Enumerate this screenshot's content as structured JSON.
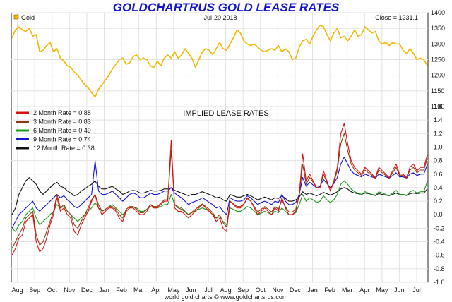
{
  "page": {
    "title": "GOLDCHARTRUS GOLD LEASE RATES",
    "footer": "world gold charts © www.goldchartsrus.com"
  },
  "chart_data": [
    {
      "type": "line",
      "legend": "Gold",
      "date_label": "Jul-20  2018",
      "close_label": "Close = 1231.1",
      "color": "#f5b800",
      "ylim": [
        1100,
        1400
      ],
      "yticks": [
        1100,
        1150,
        1200,
        1250,
        1300,
        1350,
        1400
      ],
      "grid": true,
      "series": [
        {
          "name": "Gold",
          "values": [
            1320,
            1345,
            1355,
            1345,
            1340,
            1350,
            1325,
            1330,
            1275,
            1280,
            1295,
            1305,
            1275,
            1285,
            1255,
            1245,
            1230,
            1225,
            1210,
            1200,
            1185,
            1170,
            1160,
            1145,
            1130,
            1155,
            1170,
            1185,
            1200,
            1220,
            1235,
            1250,
            1255,
            1235,
            1240,
            1260,
            1265,
            1250,
            1255,
            1250,
            1230,
            1225,
            1245,
            1230,
            1255,
            1265,
            1255,
            1275,
            1255,
            1265,
            1285,
            1270,
            1255,
            1225,
            1250,
            1275,
            1285,
            1280,
            1265,
            1285,
            1305,
            1285,
            1280,
            1300,
            1320,
            1345,
            1335,
            1310,
            1300,
            1295,
            1300,
            1290,
            1280,
            1275,
            1280,
            1285,
            1280,
            1295,
            1275,
            1285,
            1275,
            1250,
            1255,
            1290,
            1310,
            1315,
            1300,
            1325,
            1345,
            1360,
            1355,
            1330,
            1310,
            1335,
            1350,
            1320,
            1325,
            1310,
            1325,
            1345,
            1325,
            1330,
            1355,
            1345,
            1335,
            1340,
            1310,
            1300,
            1305,
            1295,
            1305,
            1300,
            1300,
            1280,
            1270,
            1285,
            1270,
            1250,
            1255,
            1250,
            1231
          ]
        }
      ]
    },
    {
      "type": "line",
      "title": "IMPLIED LEASE RATES",
      "ylim": [
        -1.0,
        1.6
      ],
      "yticks": [
        -1.0,
        -0.8,
        -0.6,
        -0.4,
        -0.2,
        0.0,
        0.2,
        0.4,
        0.6,
        0.8,
        1.0,
        1.2,
        1.4,
        1.6
      ],
      "ytick_labels": [
        "-1.0",
        "-0.8",
        "-0.6",
        "-0.4",
        "-0.2",
        "0.0",
        "0.2",
        "0.4",
        "0.6",
        "0.8",
        "1.0",
        "1.2",
        "1.4",
        "1.6"
      ],
      "grid": true,
      "legend_position": "top-left",
      "x_labels": [
        "Aug",
        "Sep",
        "Oct",
        "Nov",
        "Dec",
        "Jan",
        "Feb",
        "Mar",
        "Apr",
        "May",
        "Jun",
        "Jul",
        "Aug",
        "Sep",
        "Oct",
        "Nov",
        "Dec",
        "Jan",
        "Feb",
        "Mar",
        "Apr",
        "May",
        "Jun",
        "Jul"
      ],
      "series": [
        {
          "name": "2 Month Rate  = 0.88",
          "color": "#e01010",
          "values": [
            -0.6,
            -0.5,
            -0.35,
            -0.3,
            -0.1,
            -0.05,
            0.0,
            -0.4,
            -0.55,
            -0.5,
            -0.35,
            -0.15,
            0.0,
            0.25,
            0.05,
            0.1,
            0.0,
            -0.05,
            -0.25,
            -0.3,
            -0.15,
            -0.05,
            0.05,
            0.2,
            0.3,
            0.1,
            0.0,
            0.05,
            0.1,
            0.1,
            0.05,
            -0.05,
            -0.1,
            0.05,
            0.1,
            0.1,
            0.05,
            0.0,
            0.0,
            0.05,
            0.15,
            0.1,
            0.1,
            0.15,
            0.2,
            0.2,
            1.1,
            0.1,
            0.05,
            0.05,
            0.0,
            -0.05,
            0.0,
            0.05,
            0.1,
            0.15,
            0.1,
            0.05,
            0.0,
            -0.1,
            -0.05,
            -0.2,
            -0.25,
            0.2,
            0.15,
            0.1,
            0.1,
            0.15,
            0.25,
            0.2,
            0.1,
            0.0,
            0.05,
            0.1,
            0.05,
            0.0,
            0.1,
            0.05,
            0.25,
            0.1,
            0.0,
            0.0,
            0.05,
            0.3,
            0.9,
            0.5,
            0.6,
            0.5,
            0.4,
            0.4,
            0.65,
            0.5,
            0.35,
            0.5,
            0.7,
            1.2,
            1.35,
            1.05,
            0.8,
            0.7,
            0.65,
            0.6,
            0.7,
            0.65,
            0.6,
            0.55,
            0.7,
            0.65,
            0.6,
            0.55,
            0.65,
            0.75,
            0.6,
            0.6,
            0.55,
            0.7,
            0.75,
            0.65,
            0.7,
            0.7,
            0.88
          ]
        },
        {
          "name": "3 Month Rate  = 0.83",
          "color": "#8b3a10",
          "values": [
            -0.5,
            -0.4,
            -0.3,
            -0.2,
            -0.05,
            0.0,
            0.05,
            -0.3,
            -0.45,
            -0.4,
            -0.25,
            -0.1,
            0.05,
            0.3,
            0.1,
            0.15,
            0.05,
            0.0,
            -0.15,
            -0.2,
            -0.1,
            0.0,
            0.1,
            0.22,
            0.3,
            0.15,
            0.05,
            0.08,
            0.12,
            0.12,
            0.08,
            0.0,
            -0.05,
            0.08,
            0.12,
            0.12,
            0.08,
            0.03,
            0.03,
            0.08,
            0.15,
            0.12,
            0.12,
            0.17,
            0.22,
            0.22,
            0.95,
            0.15,
            0.1,
            0.08,
            0.04,
            0.0,
            0.04,
            0.08,
            0.12,
            0.16,
            0.12,
            0.08,
            0.03,
            -0.05,
            0.0,
            -0.12,
            -0.18,
            0.2,
            0.16,
            0.12,
            0.12,
            0.16,
            0.24,
            0.2,
            0.12,
            0.04,
            0.08,
            0.12,
            0.08,
            0.04,
            0.12,
            0.08,
            0.22,
            0.12,
            0.04,
            0.04,
            0.08,
            0.28,
            0.75,
            0.45,
            0.55,
            0.48,
            0.4,
            0.4,
            0.6,
            0.48,
            0.36,
            0.48,
            0.65,
            1.05,
            1.2,
            0.95,
            0.75,
            0.66,
            0.62,
            0.58,
            0.66,
            0.62,
            0.58,
            0.54,
            0.66,
            0.62,
            0.58,
            0.54,
            0.62,
            0.7,
            0.58,
            0.58,
            0.54,
            0.66,
            0.7,
            0.62,
            0.66,
            0.66,
            0.83
          ]
        },
        {
          "name": "6 Month Rate  = 0.49",
          "color": "#1a9a1a",
          "values": [
            -0.2,
            -0.25,
            -0.15,
            -0.1,
            0.0,
            0.05,
            0.1,
            -0.05,
            -0.15,
            -0.1,
            -0.05,
            0.0,
            0.05,
            0.15,
            0.1,
            0.12,
            0.05,
            0.0,
            -0.05,
            -0.1,
            -0.05,
            0.0,
            0.05,
            0.1,
            0.18,
            0.1,
            0.05,
            0.08,
            0.12,
            0.15,
            0.1,
            0.05,
            0.0,
            0.05,
            0.1,
            0.12,
            0.1,
            0.05,
            0.05,
            0.08,
            0.12,
            0.1,
            0.1,
            0.12,
            0.15,
            0.15,
            0.3,
            0.15,
            0.12,
            0.1,
            0.05,
            0.0,
            0.03,
            0.06,
            0.08,
            0.1,
            0.08,
            0.05,
            0.0,
            -0.05,
            -0.03,
            -0.1,
            -0.15,
            0.1,
            0.08,
            0.05,
            0.05,
            0.08,
            0.12,
            0.1,
            0.05,
            0.0,
            0.02,
            0.05,
            0.03,
            0.0,
            0.05,
            0.03,
            0.1,
            0.05,
            0.0,
            0.0,
            0.03,
            0.15,
            0.3,
            0.2,
            0.25,
            0.22,
            0.18,
            0.2,
            0.28,
            0.22,
            0.18,
            0.22,
            0.3,
            0.45,
            0.5,
            0.45,
            0.38,
            0.34,
            0.32,
            0.3,
            0.34,
            0.32,
            0.3,
            0.28,
            0.34,
            0.32,
            0.3,
            0.28,
            0.32,
            0.36,
            0.3,
            0.3,
            0.28,
            0.34,
            0.36,
            0.32,
            0.34,
            0.34,
            0.49
          ]
        },
        {
          "name": "9 Month Rate  = 0.74",
          "color": "#1414d2",
          "values": [
            -0.2,
            -0.1,
            0.0,
            0.05,
            0.1,
            0.15,
            0.2,
            0.1,
            0.05,
            0.1,
            0.15,
            0.2,
            0.25,
            0.3,
            0.25,
            0.28,
            0.22,
            0.18,
            0.12,
            0.1,
            0.15,
            0.2,
            0.25,
            0.3,
            0.8,
            0.35,
            0.3,
            0.3,
            0.32,
            0.35,
            0.3,
            0.25,
            0.2,
            0.25,
            0.3,
            0.32,
            0.3,
            0.25,
            0.25,
            0.28,
            0.32,
            0.3,
            0.3,
            0.32,
            0.35,
            0.35,
            0.4,
            0.32,
            0.28,
            0.25,
            0.2,
            0.15,
            0.18,
            0.2,
            0.22,
            0.25,
            0.22,
            0.18,
            0.15,
            0.1,
            0.12,
            0.05,
            0.0,
            0.25,
            0.22,
            0.2,
            0.2,
            0.22,
            0.28,
            0.25,
            0.2,
            0.15,
            0.18,
            0.2,
            0.18,
            0.15,
            0.2,
            0.18,
            0.3,
            0.2,
            0.15,
            0.15,
            0.18,
            0.3,
            0.55,
            0.42,
            0.48,
            0.44,
            0.4,
            0.42,
            0.52,
            0.46,
            0.4,
            0.46,
            0.55,
            0.75,
            0.85,
            0.75,
            0.65,
            0.6,
            0.58,
            0.56,
            0.6,
            0.58,
            0.56,
            0.54,
            0.6,
            0.58,
            0.56,
            0.54,
            0.58,
            0.62,
            0.56,
            0.56,
            0.54,
            0.6,
            0.62,
            0.58,
            0.6,
            0.6,
            0.74
          ]
        },
        {
          "name": "12 Month Rate  = 0.38",
          "color": "#111111",
          "values": [
            0.0,
            0.1,
            0.3,
            0.4,
            0.5,
            0.55,
            0.5,
            0.45,
            0.35,
            0.3,
            0.35,
            0.4,
            0.45,
            0.48,
            0.42,
            0.4,
            0.35,
            0.32,
            0.28,
            0.3,
            0.35,
            0.38,
            0.42,
            0.45,
            0.5,
            0.42,
            0.38,
            0.38,
            0.4,
            0.42,
            0.38,
            0.35,
            0.3,
            0.32,
            0.35,
            0.36,
            0.35,
            0.32,
            0.32,
            0.34,
            0.36,
            0.35,
            0.35,
            0.36,
            0.38,
            0.38,
            0.4,
            0.36,
            0.34,
            0.32,
            0.3,
            0.28,
            0.3,
            0.3,
            0.32,
            0.34,
            0.32,
            0.3,
            0.28,
            0.25,
            0.26,
            0.22,
            0.2,
            0.3,
            0.28,
            0.26,
            0.26,
            0.28,
            0.3,
            0.28,
            0.25,
            0.22,
            0.24,
            0.26,
            0.24,
            0.22,
            0.25,
            0.24,
            0.28,
            0.24,
            0.2,
            0.2,
            0.22,
            0.26,
            0.34,
            0.3,
            0.32,
            0.3,
            0.28,
            0.3,
            0.33,
            0.31,
            0.29,
            0.31,
            0.34,
            0.38,
            0.4,
            0.38,
            0.34,
            0.32,
            0.31,
            0.3,
            0.32,
            0.31,
            0.3,
            0.29,
            0.31,
            0.3,
            0.29,
            0.28,
            0.3,
            0.32,
            0.3,
            0.3,
            0.29,
            0.31,
            0.32,
            0.31,
            0.32,
            0.32,
            0.38
          ]
        }
      ]
    }
  ]
}
